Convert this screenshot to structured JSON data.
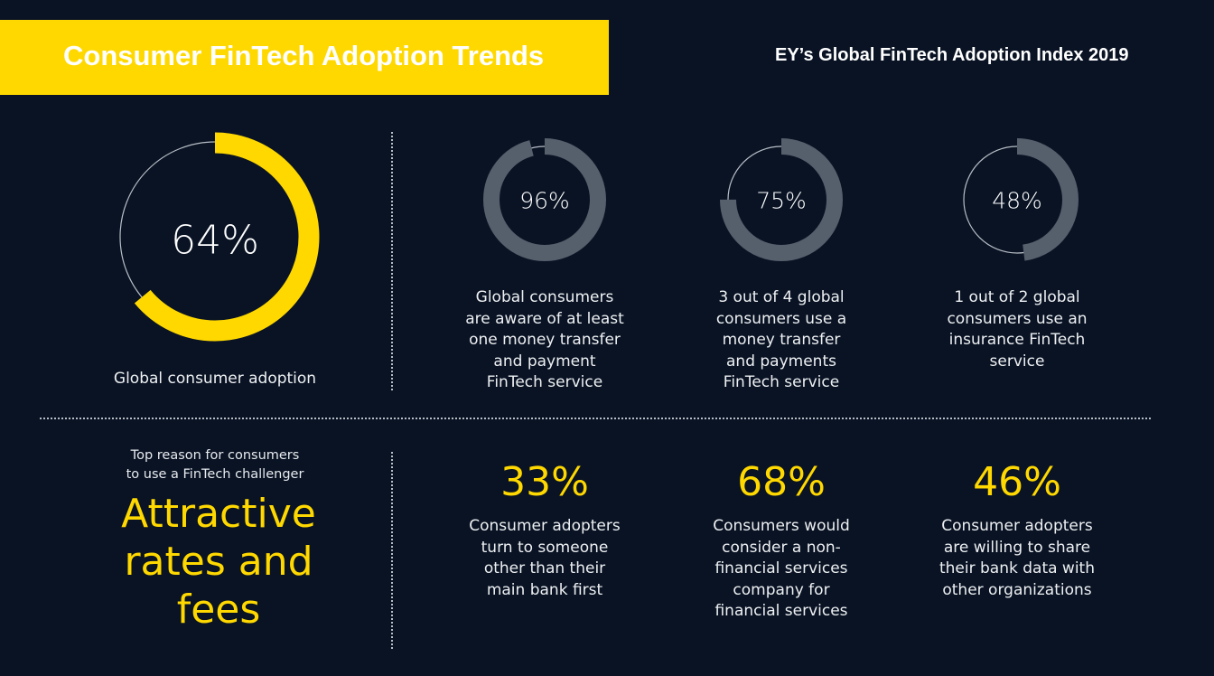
{
  "header": {
    "title": "Consumer FinTech Adoption Trends",
    "subtitle": "EY’s Global FinTech Adoption Index 2019"
  },
  "colors": {
    "background": "#091324",
    "accent": "#ffd800",
    "ring_grey": "#56606c",
    "track": "#b8bec6"
  },
  "chart_data": [
    {
      "type": "pie",
      "style": "donut",
      "value": 64,
      "label": "64%",
      "caption": "Global consumer adoption",
      "color": "#ffd800"
    },
    {
      "type": "pie",
      "style": "donut",
      "value": 96,
      "label": "96%",
      "caption": "Global consumers\nare aware of at least\none money transfer\nand payment\nFinTech service",
      "color": "#56606c"
    },
    {
      "type": "pie",
      "style": "donut",
      "value": 75,
      "label": "75%",
      "caption": "3 out of 4 global\nconsumers use a\nmoney transfer\nand payments\nFinTech service",
      "color": "#56606c"
    },
    {
      "type": "pie",
      "style": "donut",
      "value": 48,
      "label": "48%",
      "caption": "1 out of 2 global\nconsumers use an\ninsurance FinTech\nservice",
      "color": "#56606c"
    }
  ],
  "reason": {
    "intro": "Top reason for consumers\nto use a FinTech challenger",
    "headline": "Attractive\nrates and\nfees"
  },
  "stats": [
    {
      "value": "33%",
      "caption": "Consumer adopters\nturn to someone\nother than their\nmain bank first"
    },
    {
      "value": "68%",
      "caption": "Consumers would\nconsider a non-\nfinancial services\ncompany for\nfinancial services"
    },
    {
      "value": "46%",
      "caption": "Consumer adopters\nare willing to share\ntheir bank data with\nother organizations"
    }
  ]
}
